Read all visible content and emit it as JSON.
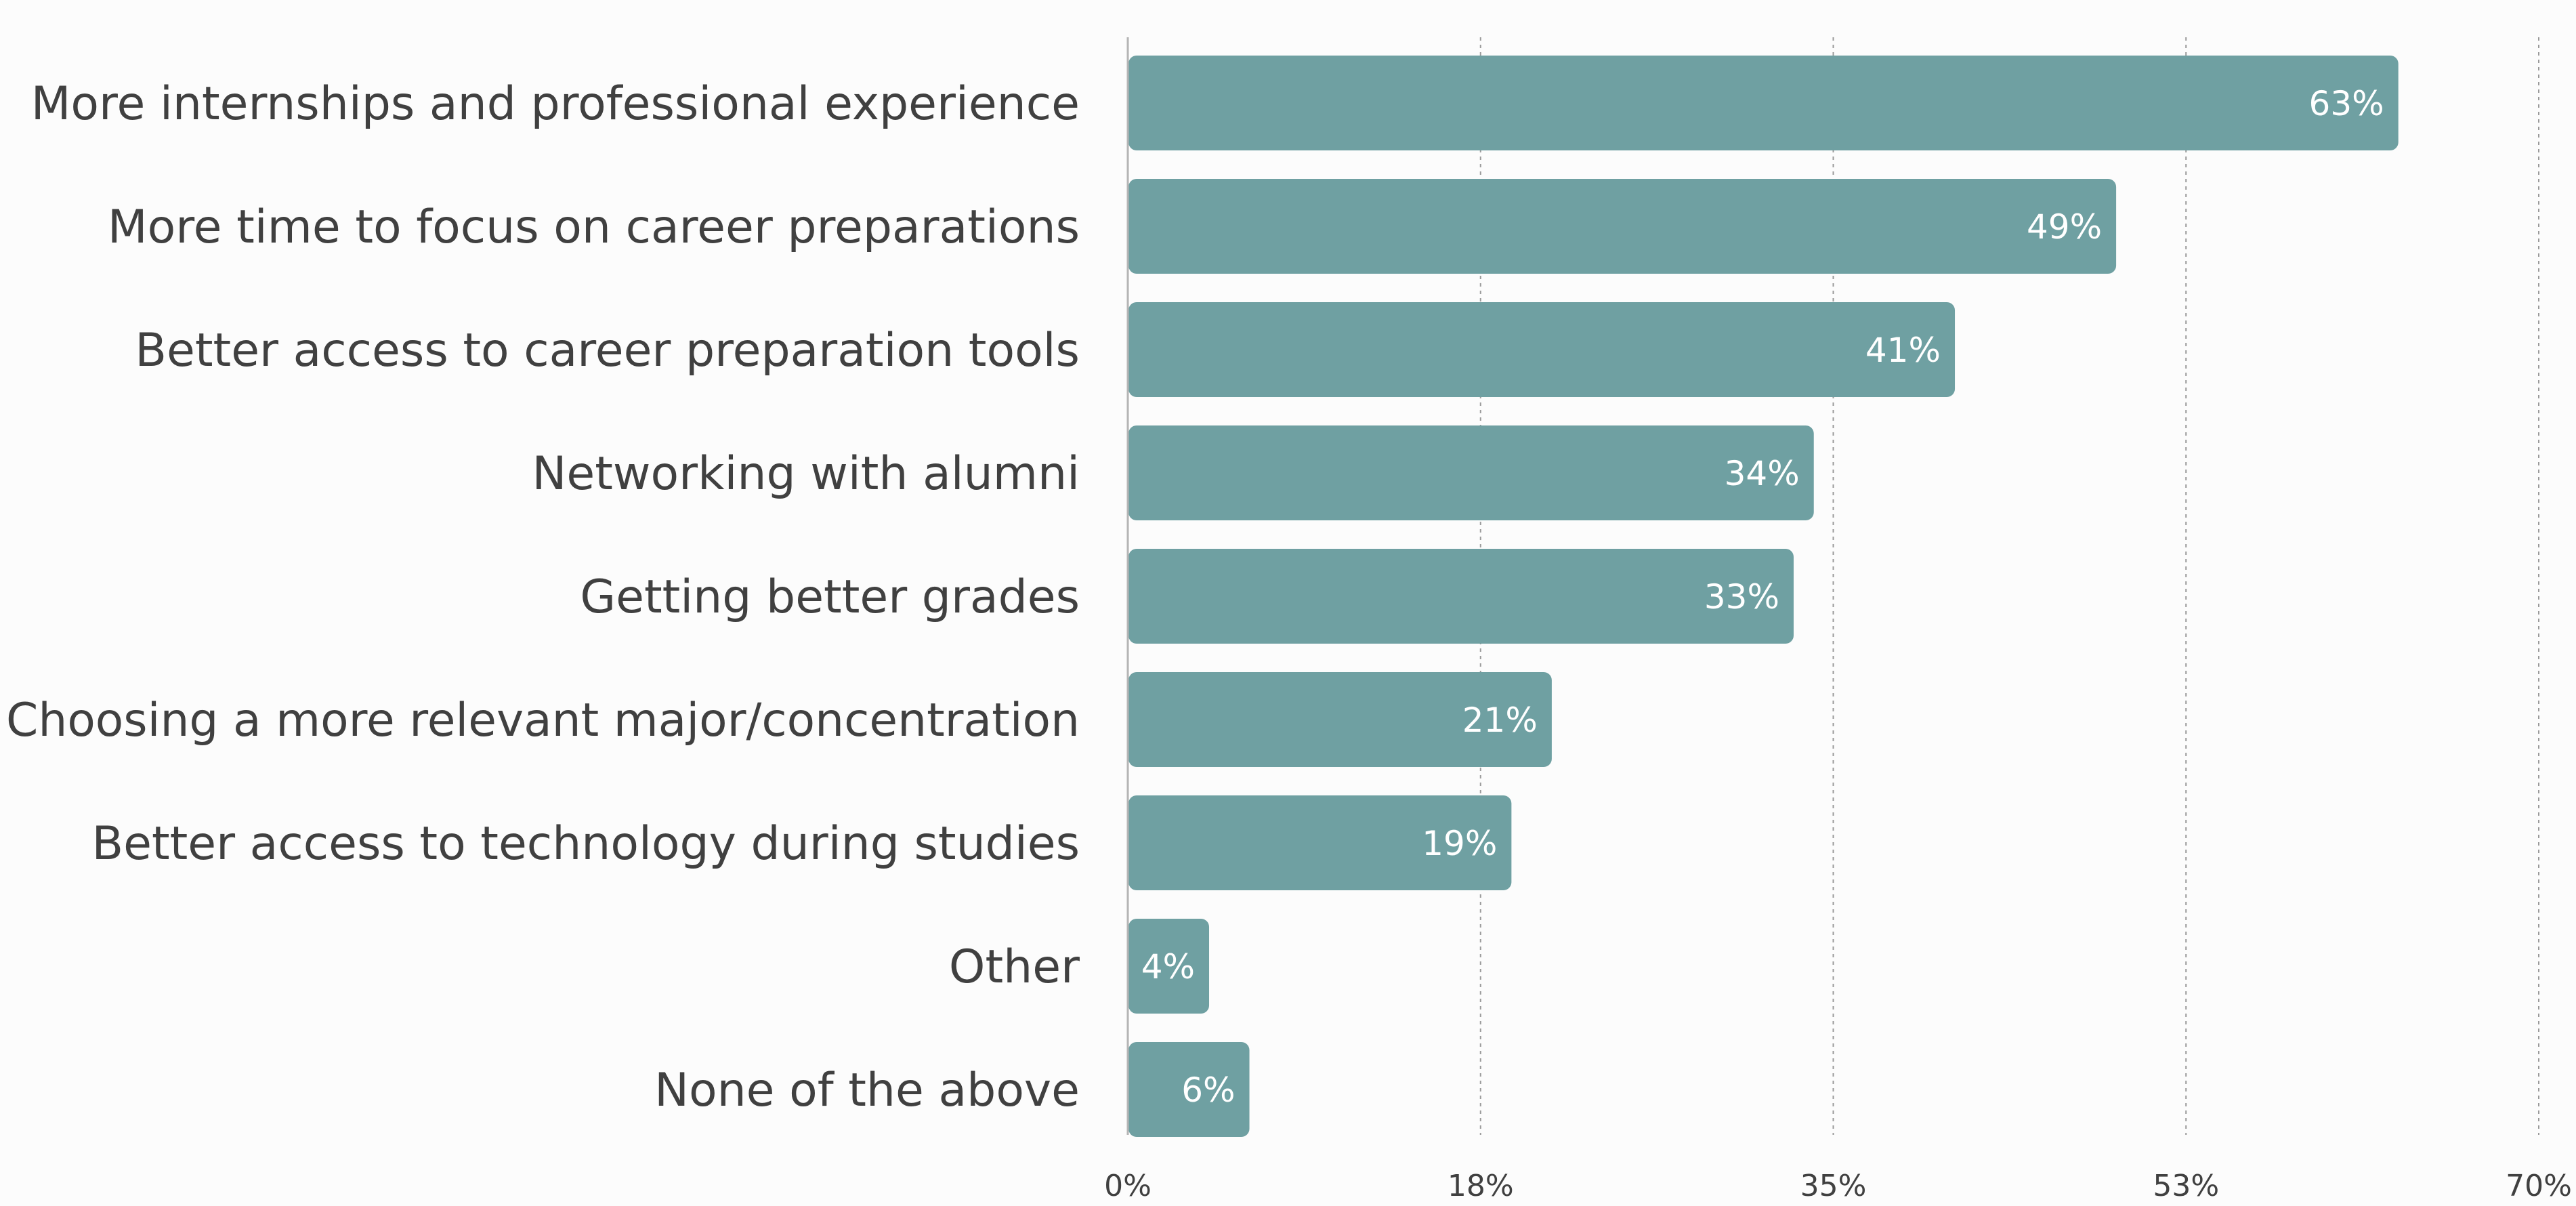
{
  "chart_data": {
    "type": "bar",
    "orientation": "horizontal",
    "categories": [
      "More internships and professional experience",
      "More time to focus on career preparations",
      "Better access to career preparation tools",
      "Networking with alumni",
      "Getting better grades",
      "Choosing a more relevant major/concentration",
      "Better access to technology during studies",
      "Other",
      "None of the above"
    ],
    "values": [
      63,
      49,
      41,
      34,
      33,
      21,
      19,
      4,
      6
    ],
    "value_labels": [
      "63%",
      "49%",
      "41%",
      "34%",
      "33%",
      "21%",
      "19%",
      "4%",
      "6%"
    ],
    "xlim": [
      0,
      70
    ],
    "x_ticks": [
      0,
      17.5,
      35,
      52.5,
      70
    ],
    "x_tick_labels": [
      "0%",
      "18%",
      "35%",
      "53%",
      "70%"
    ],
    "grid": "vertical dashed",
    "bar_color": "#6fa0a2"
  }
}
